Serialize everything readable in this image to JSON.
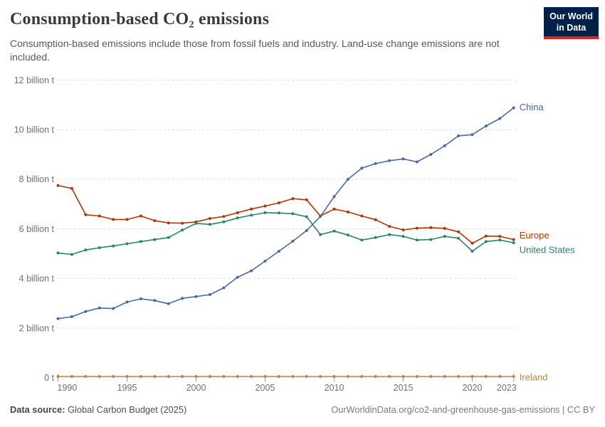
{
  "header": {
    "title": "Consumption-based CO₂ emissions",
    "subtitle": "Consumption-based emissions include those from fossil fuels and industry. Land-use change emissions are not included.",
    "logo": {
      "line1": "Our World",
      "line2": "in Data",
      "bg_color": "#002147",
      "accent_color": "#E2231A"
    }
  },
  "footer": {
    "source_label": "Data source:",
    "source_value": "Global Carbon Budget (2025)",
    "citation": "OurWorldinData.org/co2-and-greenhouse-gas-emissions | CC BY"
  },
  "chart_data": {
    "type": "line",
    "title": "Consumption-based CO₂ emissions",
    "xlabel": "",
    "ylabel": "",
    "ylim": [
      0,
      12
    ],
    "grid": "horizontal-dashed",
    "legend_position": "right-of-line-ends",
    "x": [
      1990,
      1991,
      1992,
      1993,
      1994,
      1995,
      1996,
      1997,
      1998,
      1999,
      2000,
      2001,
      2002,
      2003,
      2004,
      2005,
      2006,
      2007,
      2008,
      2009,
      2010,
      2011,
      2012,
      2013,
      2014,
      2015,
      2016,
      2017,
      2018,
      2019,
      2020,
      2021,
      2022,
      2023
    ],
    "x_tick_labels": [
      "1990",
      "1995",
      "2000",
      "2005",
      "2010",
      "2015",
      "2020",
      "2023"
    ],
    "x_tick_years": [
      1990,
      1995,
      2000,
      2005,
      2010,
      2015,
      2020,
      2023
    ],
    "y_ticks": [
      0,
      2,
      4,
      6,
      8,
      10,
      12
    ],
    "y_tick_labels": [
      "0 t",
      "2 billion t",
      "4 billion t",
      "6 billion t",
      "8 billion t",
      "10 billion t",
      "12 billion t"
    ],
    "unit": "billion tonnes",
    "series": [
      {
        "name": "China",
        "color": "#4C6A9C",
        "values": [
          2.38,
          2.46,
          2.67,
          2.81,
          2.79,
          3.05,
          3.18,
          3.11,
          2.98,
          3.2,
          3.27,
          3.35,
          3.62,
          4.05,
          4.31,
          4.7,
          5.1,
          5.5,
          5.93,
          6.5,
          7.3,
          8.0,
          8.45,
          8.63,
          8.75,
          8.82,
          8.7,
          9.0,
          9.35,
          9.75,
          9.8,
          10.15,
          10.45,
          10.88
        ]
      },
      {
        "name": "Europe",
        "color": "#B13507",
        "values": [
          7.75,
          7.63,
          6.57,
          6.52,
          6.38,
          6.38,
          6.52,
          6.33,
          6.24,
          6.23,
          6.28,
          6.42,
          6.5,
          6.65,
          6.8,
          6.92,
          7.05,
          7.22,
          7.17,
          6.52,
          6.8,
          6.68,
          6.52,
          6.37,
          6.1,
          5.96,
          6.03,
          6.05,
          6.02,
          5.88,
          5.42,
          5.71,
          5.7,
          5.57
        ]
      },
      {
        "name": "United States",
        "color": "#2C8465",
        "values": [
          5.03,
          4.97,
          5.15,
          5.24,
          5.31,
          5.4,
          5.49,
          5.57,
          5.65,
          5.95,
          6.22,
          6.18,
          6.28,
          6.44,
          6.55,
          6.65,
          6.64,
          6.61,
          6.49,
          5.77,
          5.91,
          5.75,
          5.55,
          5.65,
          5.77,
          5.7,
          5.55,
          5.57,
          5.7,
          5.62,
          5.1,
          5.49,
          5.55,
          5.44
        ]
      },
      {
        "name": "Ireland",
        "color": "#B3874A",
        "values": [
          0.05,
          0.05,
          0.05,
          0.05,
          0.05,
          0.05,
          0.05,
          0.05,
          0.05,
          0.05,
          0.05,
          0.05,
          0.05,
          0.05,
          0.05,
          0.05,
          0.05,
          0.05,
          0.05,
          0.05,
          0.05,
          0.05,
          0.05,
          0.05,
          0.05,
          0.05,
          0.05,
          0.05,
          0.05,
          0.05,
          0.05,
          0.05,
          0.05,
          0.05
        ]
      }
    ]
  }
}
